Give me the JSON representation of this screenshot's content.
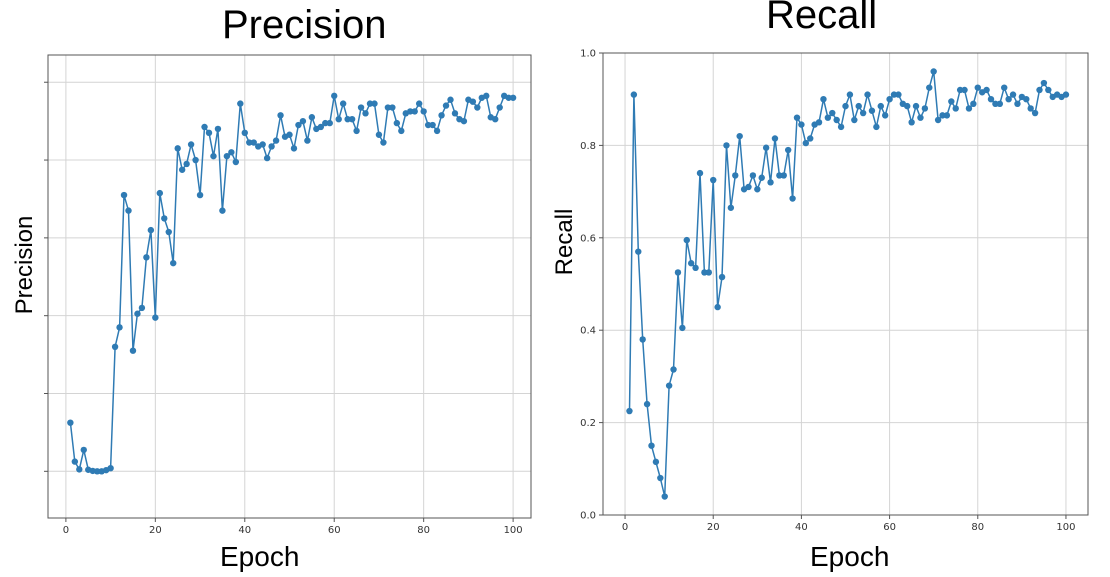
{
  "chart_data": [
    {
      "type": "line",
      "title": "Precision",
      "xlabel": "Epoch",
      "ylabel": "Precision",
      "xlim": [
        -4,
        104
      ],
      "ylim": [
        -0.12,
        1.07
      ],
      "xticks": [
        0,
        20,
        40,
        60,
        80,
        100
      ],
      "xtick_labels": [
        "0",
        "20",
        "40",
        "60",
        "80",
        "100"
      ],
      "yticks": [
        0,
        0.2,
        0.4,
        0.6,
        0.8,
        1.0
      ],
      "grid": true,
      "color": "#2f7bb4",
      "series": [
        {
          "x": [
            1,
            2,
            3,
            4,
            5,
            6,
            7,
            8,
            9,
            10,
            11,
            12,
            13,
            14,
            15,
            16,
            17,
            18,
            19,
            20,
            21,
            22,
            23,
            24,
            25,
            26,
            27,
            28,
            29,
            30,
            31,
            32,
            33,
            34,
            35,
            36,
            37,
            38,
            39,
            40,
            41,
            42,
            43,
            44,
            45,
            46,
            47,
            48,
            49,
            50,
            51,
            52,
            53,
            54,
            55,
            56,
            57,
            58,
            59,
            60,
            61,
            62,
            63,
            64,
            65,
            66,
            67,
            68,
            69,
            70,
            71,
            72,
            73,
            74,
            75,
            76,
            77,
            78,
            79,
            80,
            81,
            82,
            83,
            84,
            85,
            86,
            87,
            88,
            89,
            90,
            91,
            92,
            93,
            94,
            95,
            96,
            97,
            98,
            99,
            100
          ],
          "values": [
            0.125,
            0.025,
            0.005,
            0.055,
            0.004,
            0.001,
            0.0,
            0.0,
            0.003,
            0.008,
            0.32,
            0.37,
            0.71,
            0.67,
            0.31,
            0.405,
            0.42,
            0.55,
            0.62,
            0.395,
            0.715,
            0.65,
            0.615,
            0.535,
            0.83,
            0.775,
            0.79,
            0.84,
            0.8,
            0.71,
            0.885,
            0.87,
            0.81,
            0.88,
            0.67,
            0.81,
            0.82,
            0.795,
            0.945,
            0.87,
            0.845,
            0.845,
            0.835,
            0.84,
            0.805,
            0.835,
            0.85,
            0.915,
            0.86,
            0.865,
            0.83,
            0.89,
            0.9,
            0.85,
            0.91,
            0.88,
            0.885,
            0.895,
            0.895,
            0.965,
            0.905,
            0.945,
            0.905,
            0.905,
            0.875,
            0.935,
            0.92,
            0.945,
            0.945,
            0.865,
            0.845,
            0.935,
            0.935,
            0.895,
            0.875,
            0.92,
            0.925,
            0.925,
            0.945,
            0.925,
            0.89,
            0.89,
            0.875,
            0.915,
            0.94,
            0.955,
            0.92,
            0.905,
            0.9,
            0.955,
            0.95,
            0.935,
            0.96,
            0.965,
            0.91,
            0.905,
            0.935,
            0.965,
            0.96,
            0.96
          ]
        }
      ]
    },
    {
      "type": "line",
      "title": "Recall",
      "xlabel": "Epoch",
      "ylabel": "Recall",
      "xlim": [
        -5,
        105
      ],
      "ylim": [
        0.0,
        1.0
      ],
      "xticks": [
        0,
        20,
        40,
        60,
        80,
        100
      ],
      "xtick_labels": [
        "0",
        "20",
        "40",
        "60",
        "80",
        "100"
      ],
      "yticks": [
        0.0,
        0.2,
        0.4,
        0.6,
        0.8,
        1.0
      ],
      "ytick_labels": [
        "0.0",
        "0.2",
        "0.4",
        "0.6",
        "0.8",
        "1.0"
      ],
      "grid": true,
      "color": "#2f7bb4",
      "series": [
        {
          "x": [
            1,
            2,
            3,
            4,
            5,
            6,
            7,
            8,
            9,
            10,
            11,
            12,
            13,
            14,
            15,
            16,
            17,
            18,
            19,
            20,
            21,
            22,
            23,
            24,
            25,
            26,
            27,
            28,
            29,
            30,
            31,
            32,
            33,
            34,
            35,
            36,
            37,
            38,
            39,
            40,
            41,
            42,
            43,
            44,
            45,
            46,
            47,
            48,
            49,
            50,
            51,
            52,
            53,
            54,
            55,
            56,
            57,
            58,
            59,
            60,
            61,
            62,
            63,
            64,
            65,
            66,
            67,
            68,
            69,
            70,
            71,
            72,
            73,
            74,
            75,
            76,
            77,
            78,
            79,
            80,
            81,
            82,
            83,
            84,
            85,
            86,
            87,
            88,
            89,
            90,
            91,
            92,
            93,
            94,
            95,
            96,
            97,
            98,
            99,
            100
          ],
          "values": [
            0.225,
            0.91,
            0.57,
            0.38,
            0.24,
            0.15,
            0.115,
            0.08,
            0.04,
            0.28,
            0.315,
            0.525,
            0.405,
            0.595,
            0.545,
            0.535,
            0.74,
            0.525,
            0.525,
            0.725,
            0.45,
            0.515,
            0.8,
            0.665,
            0.735,
            0.82,
            0.705,
            0.71,
            0.735,
            0.705,
            0.73,
            0.795,
            0.72,
            0.815,
            0.735,
            0.735,
            0.79,
            0.685,
            0.86,
            0.845,
            0.805,
            0.815,
            0.845,
            0.85,
            0.9,
            0.86,
            0.87,
            0.855,
            0.84,
            0.885,
            0.91,
            0.855,
            0.885,
            0.87,
            0.91,
            0.875,
            0.84,
            0.885,
            0.865,
            0.9,
            0.91,
            0.91,
            0.89,
            0.885,
            0.85,
            0.885,
            0.86,
            0.88,
            0.925,
            0.96,
            0.855,
            0.865,
            0.865,
            0.895,
            0.88,
            0.92,
            0.92,
            0.88,
            0.89,
            0.925,
            0.915,
            0.92,
            0.9,
            0.89,
            0.89,
            0.925,
            0.9,
            0.91,
            0.89,
            0.905,
            0.9,
            0.88,
            0.87,
            0.92,
            0.935,
            0.92,
            0.905,
            0.91,
            0.905,
            0.91
          ]
        }
      ]
    }
  ]
}
